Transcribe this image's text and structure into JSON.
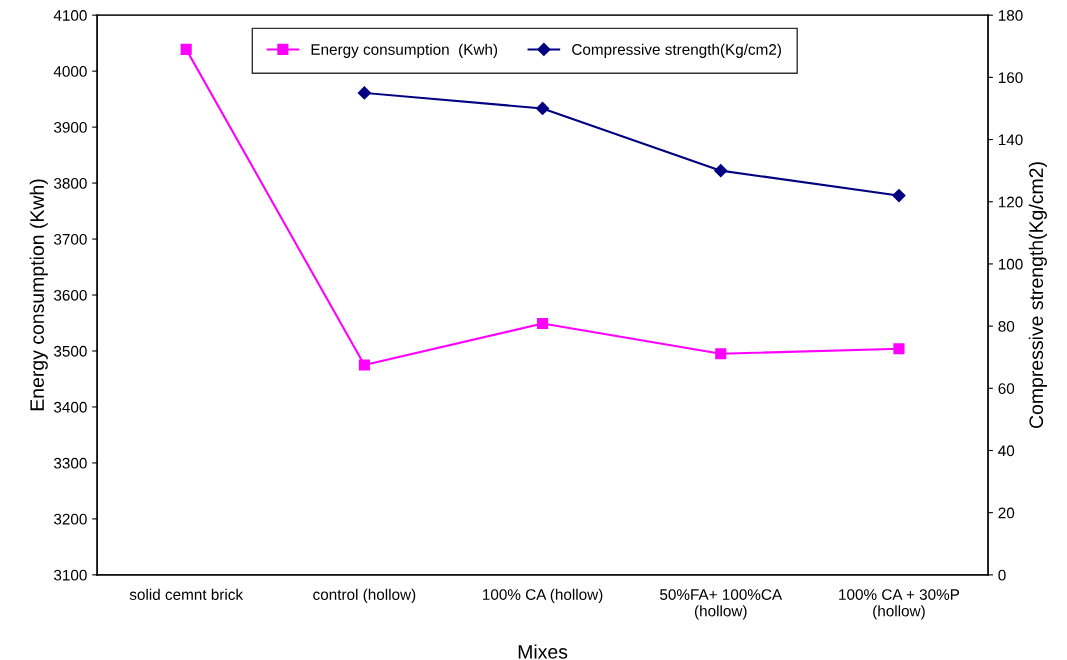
{
  "chart_data": {
    "type": "line",
    "categories": [
      "solid cemnt brick",
      "control (hollow)",
      "100% CA (hollow)",
      "50%FA+ 100%CA\n(hollow)",
      "100% CA + 30%P\n(hollow)"
    ],
    "series": [
      {
        "name": "Energy consumption  (Kwh)",
        "color": "#ff00ff",
        "marker": "square",
        "values": [
          4039,
          3475,
          3549,
          3495,
          3504
        ]
      },
      {
        "name": "Compressive strength(Kg/cm2)",
        "color": "#000080",
        "marker": "diamond",
        "axis": "y2",
        "values": [
          null,
          155,
          150,
          130,
          122
        ]
      }
    ],
    "xlabel": "Mixes",
    "ylabel": "Energy consumption (Kwh)",
    "y2label": "Compressive strength(Kg/cm2)",
    "ylim": [
      3100,
      4100
    ],
    "yticks": [
      3100,
      3200,
      3300,
      3400,
      3500,
      3600,
      3700,
      3800,
      3900,
      4000,
      4100
    ],
    "y2lim": [
      0,
      180
    ],
    "y2ticks": [
      0,
      20,
      40,
      60,
      80,
      100,
      120,
      140,
      160,
      180
    ],
    "legend": "top",
    "grid": false,
    "line_style": "solid"
  }
}
